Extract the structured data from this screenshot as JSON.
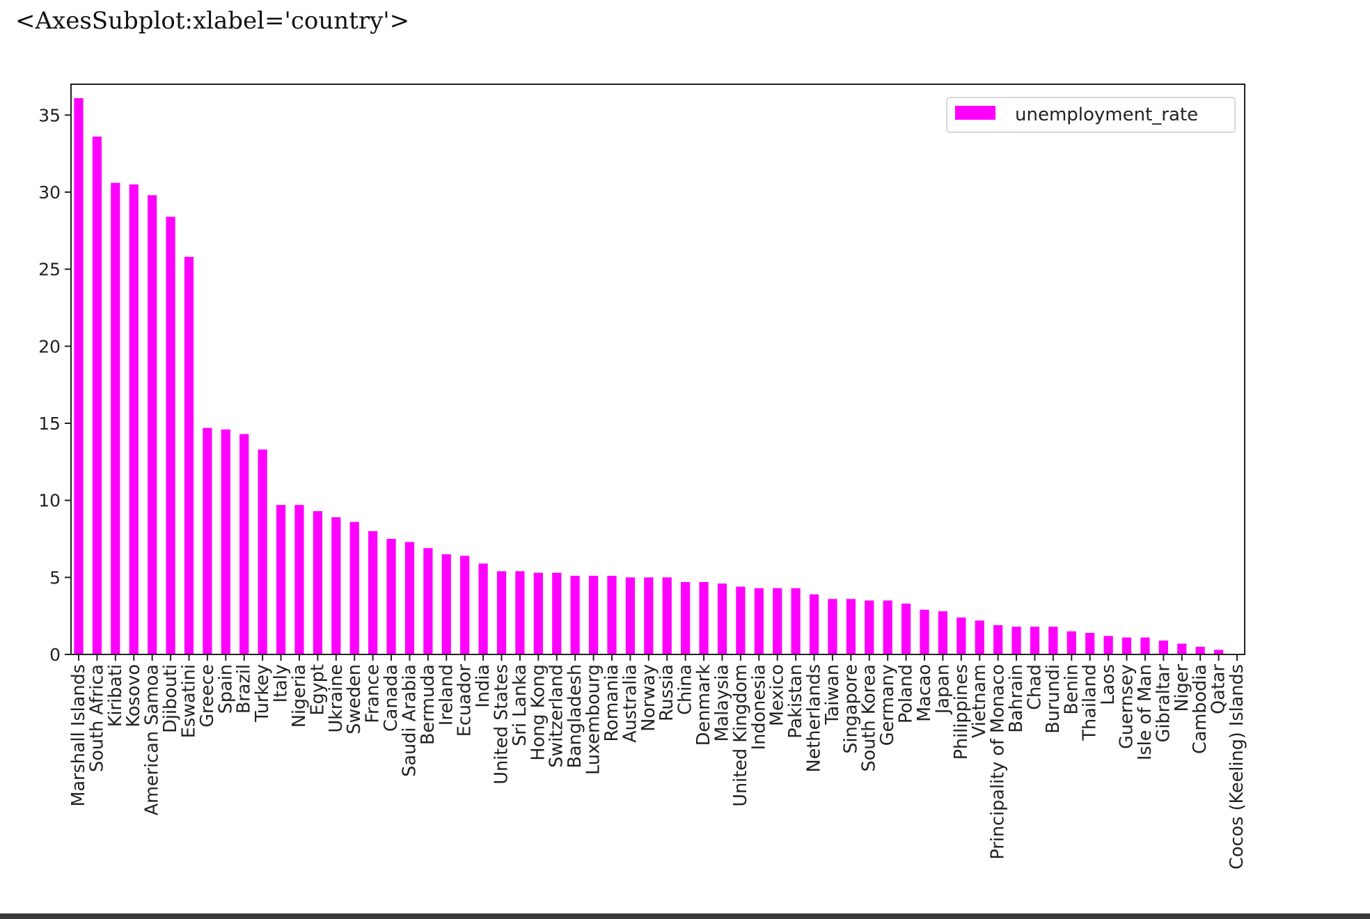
{
  "repr_text": "<AxesSubplot:xlabel='country'>",
  "chart_data": {
    "type": "bar",
    "xlabel": "country",
    "ylabel": "",
    "ylim": [
      0,
      37
    ],
    "yticks": [
      0,
      5,
      10,
      15,
      20,
      25,
      30,
      35
    ],
    "legend_position": "top-right",
    "grid": false,
    "categories": [
      "Marshall Islands",
      "South Africa",
      "Kiribati",
      "Kosovo",
      "American Samoa",
      "Djibouti",
      "Eswatini",
      "Greece",
      "Spain",
      "Brazil",
      "Turkey",
      "Italy",
      "Nigeria",
      "Egypt",
      "Ukraine",
      "Sweden",
      "France",
      "Canada",
      "Saudi Arabia",
      "Bermuda",
      "Ireland",
      "Ecuador",
      "India",
      "United States",
      "Sri Lanka",
      "Hong Kong",
      "Switzerland",
      "Bangladesh",
      "Luxembourg",
      "Romania",
      "Australia",
      "Norway",
      "Russia",
      "China",
      "Denmark",
      "Malaysia",
      "United Kingdom",
      "Indonesia",
      "Mexico",
      "Pakistan",
      "Netherlands",
      "Taiwan",
      "Singapore",
      "South Korea",
      "Germany",
      "Poland",
      "Macao",
      "Japan",
      "Philippines",
      "Vietnam",
      "Principality of Monaco",
      "Bahrain",
      "Chad",
      "Burundi",
      "Benin",
      "Thailand",
      "Laos",
      "Guernsey",
      "Isle of Man",
      "Gibraltar",
      "Niger",
      "Cambodia",
      "Qatar",
      "Cocos (Keeling) Islands"
    ],
    "series": [
      {
        "name": "unemployment_rate",
        "color": "#ff00ff",
        "values": [
          36.1,
          33.6,
          30.6,
          30.5,
          29.8,
          28.4,
          25.8,
          14.7,
          14.6,
          14.3,
          13.3,
          9.7,
          9.7,
          9.3,
          8.9,
          8.6,
          8.0,
          7.5,
          7.3,
          6.9,
          6.5,
          6.4,
          5.9,
          5.4,
          5.4,
          5.3,
          5.3,
          5.1,
          5.1,
          5.1,
          5.0,
          5.0,
          5.0,
          4.7,
          4.7,
          4.6,
          4.4,
          4.3,
          4.3,
          4.3,
          3.9,
          3.6,
          3.6,
          3.5,
          3.5,
          3.3,
          2.9,
          2.8,
          2.4,
          2.2,
          1.9,
          1.8,
          1.8,
          1.8,
          1.5,
          1.4,
          1.2,
          1.1,
          1.1,
          0.9,
          0.7,
          0.5,
          0.3,
          0.0
        ]
      }
    ]
  }
}
